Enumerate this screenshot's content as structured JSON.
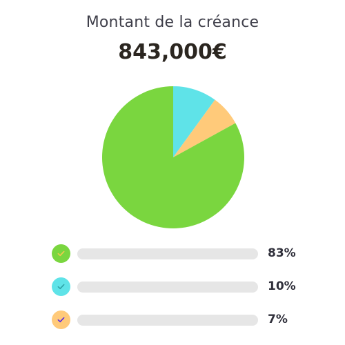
{
  "title": "Montant de la créance",
  "amount": "843,000€",
  "chart_data": {
    "type": "pie",
    "slices": [
      {
        "value": 83,
        "label": "83%",
        "color": "#7ad63f",
        "check_color": "#f2c94c"
      },
      {
        "value": 10,
        "label": "10%",
        "color": "#5fe3e8",
        "check_color": "#2fa3a8"
      },
      {
        "value": 7,
        "label": "7%",
        "color": "#ffca7a",
        "check_color": "#5b2be0"
      }
    ]
  }
}
